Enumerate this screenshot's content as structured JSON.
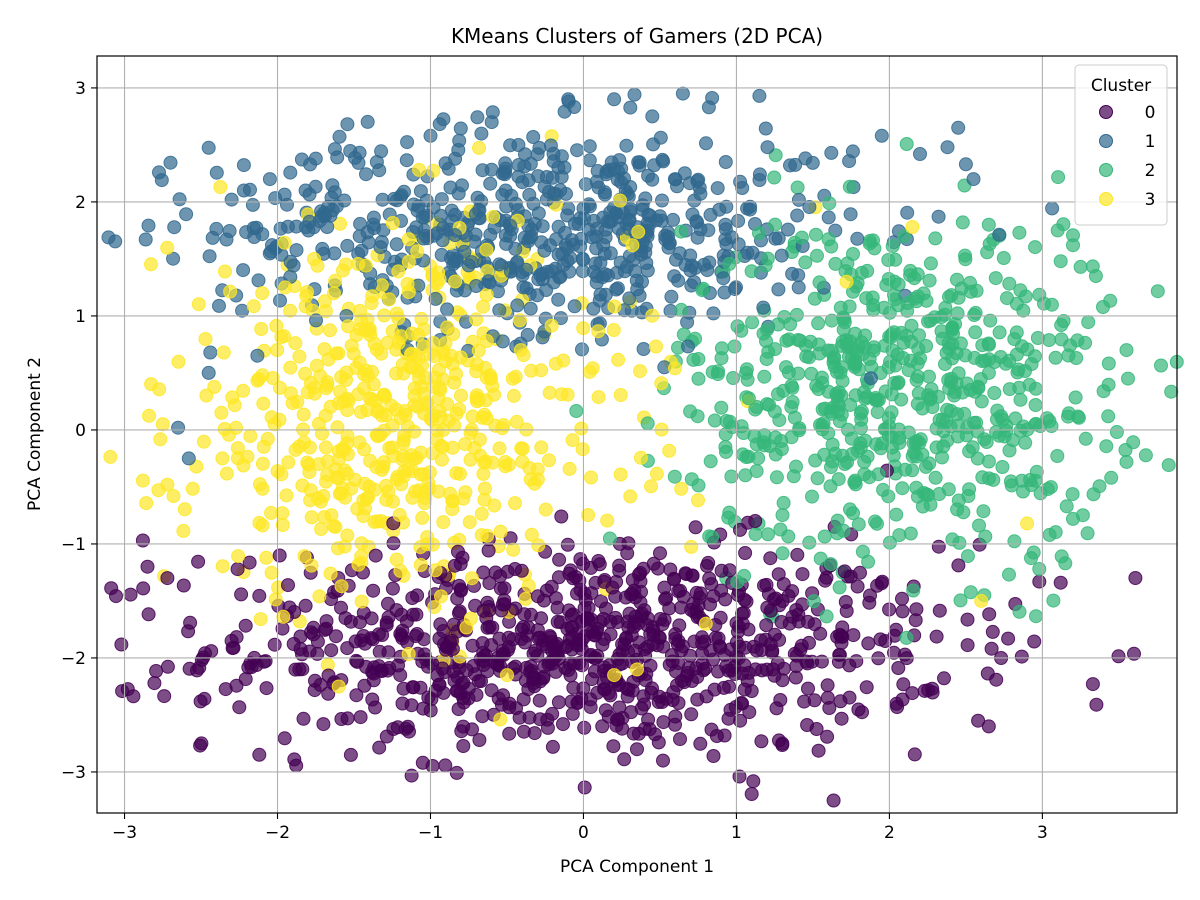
{
  "chart_data": {
    "type": "scatter",
    "title": "KMeans Clusters of Gamers (2D PCA)",
    "xlabel": "PCA Component 1",
    "ylabel": "PCA Component 2",
    "xlim": [
      -3.18,
      3.88
    ],
    "ylim": [
      -3.36,
      3.28
    ],
    "xticks": [
      -3,
      -2,
      -1,
      0,
      1,
      2,
      3
    ],
    "yticks": [
      -3,
      -2,
      -1,
      0,
      1,
      2,
      3
    ],
    "grid": true,
    "legend_title": "Cluster",
    "legend_position": "top-right",
    "colors": {
      "0": "#440154",
      "1": "#31688e",
      "2": "#35b779",
      "3": "#fde725"
    },
    "series": [
      {
        "name": "0",
        "color": "#440154",
        "center": [
          0.0,
          -1.9
        ],
        "spread": [
          1.2,
          0.45
        ],
        "points": [
          [
            -2.88,
            -0.97
          ],
          [
            -2.85,
            -1.2
          ],
          [
            -2.72,
            -1.3
          ],
          [
            -2.3,
            -1.85
          ],
          [
            -2.17,
            -2.08
          ],
          [
            -1.7,
            -2.58
          ],
          [
            -1.52,
            -2.85
          ],
          [
            -1.05,
            -2.92
          ],
          [
            -0.68,
            -2.72
          ],
          [
            -0.2,
            -2.78
          ],
          [
            0.35,
            -2.8
          ],
          [
            0.52,
            -2.9
          ],
          [
            0.85,
            -2.86
          ],
          [
            1.02,
            -3.04
          ],
          [
            1.3,
            -2.75
          ],
          [
            1.68,
            -2.38
          ],
          [
            2.05,
            -2.43
          ],
          [
            2.28,
            -2.27
          ],
          [
            2.58,
            -2.55
          ],
          [
            2.65,
            -2.6
          ],
          [
            2.98,
            -1.33
          ],
          [
            3.12,
            -1.34
          ],
          [
            2.73,
            -2.0
          ]
        ]
      },
      {
        "name": "1",
        "color": "#31688e",
        "center": [
          -0.3,
          1.75
        ],
        "spread": [
          1.05,
          0.45
        ],
        "points": [
          [
            -2.3,
            2.02
          ],
          [
            -2.22,
            2.1
          ],
          [
            -2.05,
            2.2
          ],
          [
            -1.75,
            2.38
          ],
          [
            -1.35,
            2.35
          ],
          [
            -1.0,
            2.58
          ],
          [
            -0.6,
            2.7
          ],
          [
            -0.1,
            2.9
          ],
          [
            0.2,
            2.9
          ],
          [
            0.45,
            2.75
          ],
          [
            0.65,
            2.95
          ],
          [
            0.82,
            2.83
          ],
          [
            1.15,
            2.93
          ],
          [
            1.35,
            2.32
          ],
          [
            1.62,
            2.43
          ],
          [
            1.95,
            2.58
          ],
          [
            2.2,
            2.42
          ],
          [
            2.45,
            2.65
          ],
          [
            2.38,
            2.48
          ],
          [
            2.5,
            2.33
          ],
          [
            2.55,
            2.2
          ],
          [
            -2.65,
            0.02
          ],
          [
            -2.58,
            -0.25
          ],
          [
            -2.45,
            0.5
          ]
        ]
      },
      {
        "name": "2",
        "color": "#35b779",
        "center": [
          2.05,
          0.35
        ],
        "spread": [
          0.7,
          0.75
        ],
        "points": [
          [
            2.48,
            1.82
          ],
          [
            2.65,
            1.8
          ],
          [
            2.85,
            1.73
          ],
          [
            3.1,
            1.75
          ],
          [
            3.12,
            1.48
          ],
          [
            3.2,
            1.62
          ],
          [
            3.25,
            1.43
          ],
          [
            3.35,
            1.35
          ],
          [
            3.55,
            0.7
          ],
          [
            3.56,
            0.45
          ],
          [
            3.4,
            0.34
          ],
          [
            3.43,
            0.12
          ],
          [
            3.55,
            -0.28
          ],
          [
            3.45,
            -0.42
          ],
          [
            3.2,
            -0.78
          ],
          [
            3.15,
            -1.17
          ],
          [
            2.98,
            -1.22
          ],
          [
            2.62,
            -1.45
          ],
          [
            1.05,
            -1.28
          ],
          [
            2.3,
            1.68
          ]
        ]
      },
      {
        "name": "3",
        "color": "#fde725",
        "center": [
          -1.2,
          0.1
        ],
        "spread": [
          0.75,
          0.85
        ],
        "points": [
          [
            -2.75,
            0.05
          ],
          [
            -2.72,
            -0.48
          ],
          [
            -2.68,
            -0.58
          ],
          [
            -2.1,
            1.2
          ],
          [
            -1.95,
            1.25
          ],
          [
            -1.15,
            1.28
          ],
          [
            -0.95,
            1.38
          ],
          [
            0.32,
            1.62
          ],
          [
            1.72,
            1.3
          ],
          [
            2.15,
            1.78
          ],
          [
            2.9,
            -0.82
          ],
          [
            2.6,
            -1.5
          ],
          [
            -1.6,
            -2.25
          ],
          [
            -0.5,
            -2.15
          ],
          [
            0.2,
            -2.15
          ],
          [
            0.35,
            -2.1
          ],
          [
            0.8,
            -1.7
          ]
        ]
      }
    ]
  }
}
